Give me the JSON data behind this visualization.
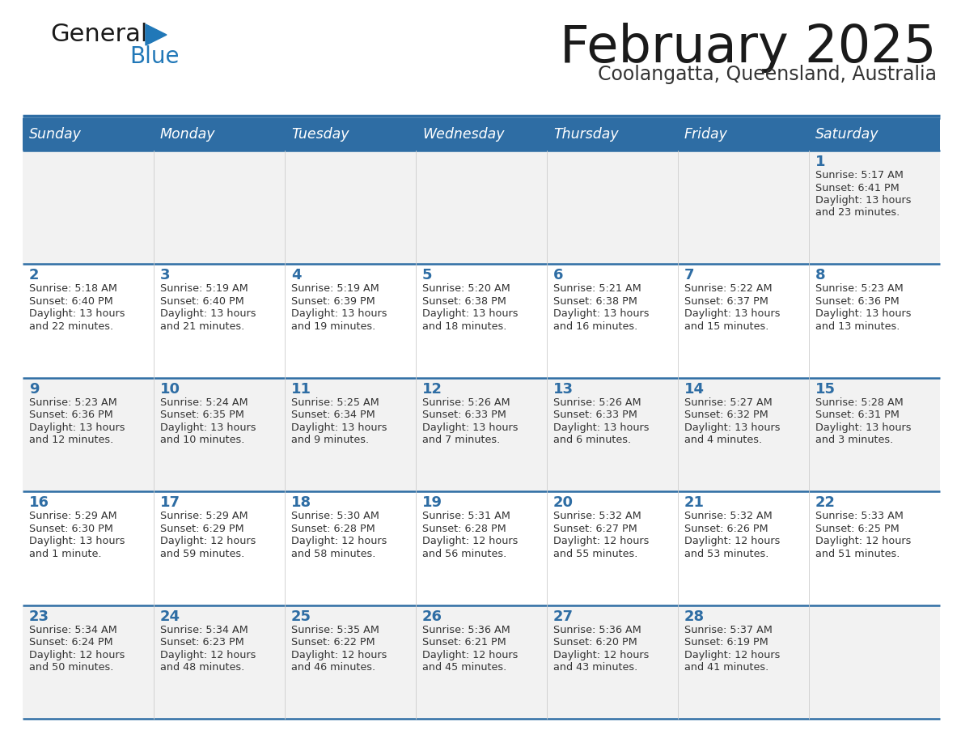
{
  "title": "February 2025",
  "subtitle": "Coolangatta, Queensland, Australia",
  "header_bg": "#2E6DA4",
  "header_text_color": "#FFFFFF",
  "row_bg_odd": "#F2F2F2",
  "row_bg_even": "#FFFFFF",
  "cell_border_color": "#2E6DA4",
  "day_headers": [
    "Sunday",
    "Monday",
    "Tuesday",
    "Wednesday",
    "Thursday",
    "Friday",
    "Saturday"
  ],
  "title_color": "#1a1a1a",
  "subtitle_color": "#333333",
  "number_color": "#2E6DA4",
  "info_color": "#333333",
  "weeks": [
    [
      {
        "day": null,
        "sunrise": null,
        "sunset": null,
        "daylight": null
      },
      {
        "day": null,
        "sunrise": null,
        "sunset": null,
        "daylight": null
      },
      {
        "day": null,
        "sunrise": null,
        "sunset": null,
        "daylight": null
      },
      {
        "day": null,
        "sunrise": null,
        "sunset": null,
        "daylight": null
      },
      {
        "day": null,
        "sunrise": null,
        "sunset": null,
        "daylight": null
      },
      {
        "day": null,
        "sunrise": null,
        "sunset": null,
        "daylight": null
      },
      {
        "day": 1,
        "sunrise": "5:17 AM",
        "sunset": "6:41 PM",
        "daylight": "13 hours and 23 minutes."
      }
    ],
    [
      {
        "day": 2,
        "sunrise": "5:18 AM",
        "sunset": "6:40 PM",
        "daylight": "13 hours and 22 minutes."
      },
      {
        "day": 3,
        "sunrise": "5:19 AM",
        "sunset": "6:40 PM",
        "daylight": "13 hours and 21 minutes."
      },
      {
        "day": 4,
        "sunrise": "5:19 AM",
        "sunset": "6:39 PM",
        "daylight": "13 hours and 19 minutes."
      },
      {
        "day": 5,
        "sunrise": "5:20 AM",
        "sunset": "6:38 PM",
        "daylight": "13 hours and 18 minutes."
      },
      {
        "day": 6,
        "sunrise": "5:21 AM",
        "sunset": "6:38 PM",
        "daylight": "13 hours and 16 minutes."
      },
      {
        "day": 7,
        "sunrise": "5:22 AM",
        "sunset": "6:37 PM",
        "daylight": "13 hours and 15 minutes."
      },
      {
        "day": 8,
        "sunrise": "5:23 AM",
        "sunset": "6:36 PM",
        "daylight": "13 hours and 13 minutes."
      }
    ],
    [
      {
        "day": 9,
        "sunrise": "5:23 AM",
        "sunset": "6:36 PM",
        "daylight": "13 hours and 12 minutes."
      },
      {
        "day": 10,
        "sunrise": "5:24 AM",
        "sunset": "6:35 PM",
        "daylight": "13 hours and 10 minutes."
      },
      {
        "day": 11,
        "sunrise": "5:25 AM",
        "sunset": "6:34 PM",
        "daylight": "13 hours and 9 minutes."
      },
      {
        "day": 12,
        "sunrise": "5:26 AM",
        "sunset": "6:33 PM",
        "daylight": "13 hours and 7 minutes."
      },
      {
        "day": 13,
        "sunrise": "5:26 AM",
        "sunset": "6:33 PM",
        "daylight": "13 hours and 6 minutes."
      },
      {
        "day": 14,
        "sunrise": "5:27 AM",
        "sunset": "6:32 PM",
        "daylight": "13 hours and 4 minutes."
      },
      {
        "day": 15,
        "sunrise": "5:28 AM",
        "sunset": "6:31 PM",
        "daylight": "13 hours and 3 minutes."
      }
    ],
    [
      {
        "day": 16,
        "sunrise": "5:29 AM",
        "sunset": "6:30 PM",
        "daylight": "13 hours and 1 minute."
      },
      {
        "day": 17,
        "sunrise": "5:29 AM",
        "sunset": "6:29 PM",
        "daylight": "12 hours and 59 minutes."
      },
      {
        "day": 18,
        "sunrise": "5:30 AM",
        "sunset": "6:28 PM",
        "daylight": "12 hours and 58 minutes."
      },
      {
        "day": 19,
        "sunrise": "5:31 AM",
        "sunset": "6:28 PM",
        "daylight": "12 hours and 56 minutes."
      },
      {
        "day": 20,
        "sunrise": "5:32 AM",
        "sunset": "6:27 PM",
        "daylight": "12 hours and 55 minutes."
      },
      {
        "day": 21,
        "sunrise": "5:32 AM",
        "sunset": "6:26 PM",
        "daylight": "12 hours and 53 minutes."
      },
      {
        "day": 22,
        "sunrise": "5:33 AM",
        "sunset": "6:25 PM",
        "daylight": "12 hours and 51 minutes."
      }
    ],
    [
      {
        "day": 23,
        "sunrise": "5:34 AM",
        "sunset": "6:24 PM",
        "daylight": "12 hours and 50 minutes."
      },
      {
        "day": 24,
        "sunrise": "5:34 AM",
        "sunset": "6:23 PM",
        "daylight": "12 hours and 48 minutes."
      },
      {
        "day": 25,
        "sunrise": "5:35 AM",
        "sunset": "6:22 PM",
        "daylight": "12 hours and 46 minutes."
      },
      {
        "day": 26,
        "sunrise": "5:36 AM",
        "sunset": "6:21 PM",
        "daylight": "12 hours and 45 minutes."
      },
      {
        "day": 27,
        "sunrise": "5:36 AM",
        "sunset": "6:20 PM",
        "daylight": "12 hours and 43 minutes."
      },
      {
        "day": 28,
        "sunrise": "5:37 AM",
        "sunset": "6:19 PM",
        "daylight": "12 hours and 41 minutes."
      },
      {
        "day": null,
        "sunrise": null,
        "sunset": null,
        "daylight": null
      }
    ]
  ]
}
